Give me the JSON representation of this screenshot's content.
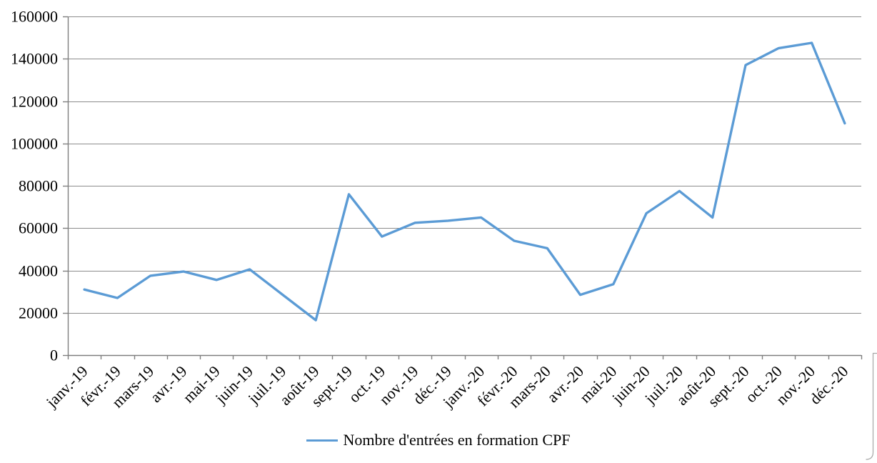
{
  "chart_data": {
    "type": "line",
    "title": "",
    "categories": [
      "janv.-19",
      "févr.-19",
      "mars-19",
      "avr.-19",
      "mai-19",
      "juin-19",
      "juil.-19",
      "août-19",
      "sept.-19",
      "oct.-19",
      "nov.-19",
      "déc.-19",
      "janv.-20",
      "févr.-20",
      "mars-20",
      "avr.-20",
      "mai-20",
      "juin-20",
      "juil.-20",
      "août-20",
      "sept.-20",
      "oct.-20",
      "nov.-20",
      "déc.-20"
    ],
    "series": [
      {
        "name": "Nombre d'entrées en formation CPF",
        "values": [
          31000,
          27000,
          37500,
          39500,
          35500,
          40500,
          28500,
          16500,
          76000,
          56000,
          62500,
          63500,
          65000,
          54000,
          50500,
          28500,
          33500,
          67000,
          77500,
          65000,
          137000,
          145000,
          147500,
          109500
        ]
      }
    ],
    "ylim": [
      0,
      160000
    ],
    "ytick_step": 20000,
    "ytick_labels": [
      "0",
      "20000",
      "40000",
      "60000",
      "80000",
      "100000",
      "120000",
      "140000",
      "160000"
    ],
    "xlabel": "",
    "ylabel": "",
    "grid": true,
    "legend_position": "bottom",
    "x_label_rotation_deg": 45
  },
  "colors": {
    "series_line": "#5B9BD5",
    "gridline": "#8C8C8C",
    "axis": "#7F7F7F",
    "text": "#000000",
    "border_fragment": "#A6A6A6"
  }
}
